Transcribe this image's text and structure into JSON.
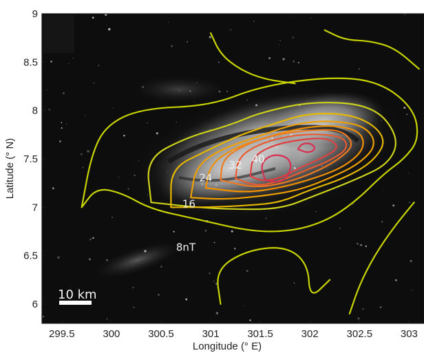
{
  "chart_data": {
    "type": "contour",
    "xlabel": "Longitude  (° E)",
    "ylabel": "Latitude (° N)",
    "xlim": [
      299.3,
      303.15
    ],
    "ylim": [
      5.8,
      9.0
    ],
    "x_ticks": [
      "299.5",
      "300",
      "300.5",
      "301",
      "301.5",
      "302",
      "302.5",
      "303"
    ],
    "y_ticks": [
      "9",
      "8.5",
      "8",
      "7.5",
      "7",
      "6.5",
      "6"
    ],
    "contour_levels": [
      8,
      16,
      24,
      32,
      40
    ],
    "contour_labels": [
      {
        "text": "8nT",
        "x": 300.75,
        "y": 6.55
      },
      {
        "text": "16",
        "x": 300.78,
        "y": 7.0
      },
      {
        "text": "24",
        "x": 300.95,
        "y": 7.27
      },
      {
        "text": "32",
        "x": 301.25,
        "y": 7.4
      },
      {
        "text": "40",
        "x": 301.48,
        "y": 7.46
      }
    ],
    "contours": [
      {
        "level": 8,
        "color": "#c8d400",
        "points": [
          [
            299.7,
            7.0
          ],
          [
            299.8,
            7.55
          ],
          [
            299.95,
            7.85
          ],
          [
            300.3,
            8.02
          ],
          [
            301.0,
            8.05
          ],
          [
            301.5,
            8.25
          ],
          [
            302.2,
            8.35
          ],
          [
            302.7,
            8.3
          ],
          [
            303.05,
            8.02
          ],
          [
            303.1,
            7.7
          ],
          [
            302.95,
            7.5
          ],
          [
            302.75,
            7.35
          ],
          [
            302.45,
            7.05
          ],
          [
            302.15,
            6.85
          ],
          [
            301.8,
            6.75
          ],
          [
            301.4,
            6.75
          ],
          [
            300.85,
            6.88
          ],
          [
            300.4,
            6.98
          ],
          [
            300.1,
            7.15
          ],
          [
            299.85,
            7.2
          ],
          [
            299.7,
            7.0
          ]
        ]
      },
      {
        "level": 8,
        "color": "#c8d400",
        "points": [
          [
            301.0,
            8.8
          ],
          [
            301.1,
            8.58
          ],
          [
            301.3,
            8.42
          ],
          [
            301.55,
            8.32
          ],
          [
            301.85,
            8.28
          ]
        ]
      },
      {
        "level": 8,
        "color": "#c8d400",
        "points": [
          [
            302.15,
            8.83
          ],
          [
            302.35,
            8.73
          ],
          [
            302.6,
            8.72
          ],
          [
            302.85,
            8.65
          ],
          [
            303.1,
            8.43
          ]
        ]
      },
      {
        "level": 8,
        "color": "#c8d400",
        "points": [
          [
            301.1,
            6.0
          ],
          [
            301.05,
            6.35
          ],
          [
            301.35,
            6.55
          ],
          [
            301.75,
            6.6
          ],
          [
            301.98,
            6.42
          ],
          [
            302.0,
            6.05
          ],
          [
            302.2,
            6.25
          ]
        ]
      },
      {
        "level": 8,
        "color": "#c8d400",
        "points": [
          [
            302.4,
            5.9
          ],
          [
            302.5,
            6.2
          ],
          [
            302.65,
            6.5
          ],
          [
            302.85,
            6.8
          ],
          [
            303.05,
            7.05
          ]
        ]
      },
      {
        "level": 12,
        "color": "#cdd21a",
        "points": [
          [
            300.4,
            7.05
          ],
          [
            300.35,
            7.5
          ],
          [
            300.75,
            7.72
          ],
          [
            301.2,
            7.85
          ],
          [
            301.5,
            7.98
          ],
          [
            302.05,
            8.1
          ],
          [
            302.65,
            8.05
          ],
          [
            302.9,
            7.72
          ],
          [
            302.8,
            7.45
          ],
          [
            302.45,
            7.28
          ],
          [
            302.05,
            7.12
          ],
          [
            301.7,
            6.98
          ],
          [
            301.2,
            6.98
          ],
          [
            300.85,
            7.0
          ],
          [
            300.4,
            7.05
          ]
        ]
      },
      {
        "level": 16,
        "color": "#e6b800",
        "points": [
          [
            300.6,
            7.0
          ],
          [
            300.6,
            7.4
          ],
          [
            300.95,
            7.58
          ],
          [
            301.3,
            7.75
          ],
          [
            301.6,
            7.85
          ],
          [
            302.0,
            7.98
          ],
          [
            302.5,
            7.95
          ],
          [
            302.78,
            7.72
          ],
          [
            302.65,
            7.48
          ],
          [
            302.35,
            7.3
          ],
          [
            302.0,
            7.18
          ],
          [
            301.7,
            7.05
          ],
          [
            301.4,
            7.02
          ],
          [
            301.0,
            7.0
          ],
          [
            300.6,
            7.0
          ]
        ]
      },
      {
        "level": 20,
        "color": "#efa000",
        "points": [
          [
            300.8,
            7.1
          ],
          [
            300.85,
            7.42
          ],
          [
            301.1,
            7.6
          ],
          [
            301.45,
            7.72
          ],
          [
            301.8,
            7.85
          ],
          [
            302.15,
            7.9
          ],
          [
            302.55,
            7.85
          ],
          [
            302.68,
            7.65
          ],
          [
            302.5,
            7.45
          ],
          [
            302.2,
            7.3
          ],
          [
            301.9,
            7.18
          ],
          [
            301.55,
            7.12
          ],
          [
            301.15,
            7.08
          ],
          [
            300.8,
            7.1
          ]
        ]
      },
      {
        "level": 24,
        "color": "#f29000",
        "points": [
          [
            300.95,
            7.2
          ],
          [
            301.0,
            7.45
          ],
          [
            301.25,
            7.62
          ],
          [
            301.55,
            7.72
          ],
          [
            301.9,
            7.82
          ],
          [
            302.25,
            7.85
          ],
          [
            302.52,
            7.78
          ],
          [
            302.55,
            7.6
          ],
          [
            302.35,
            7.42
          ],
          [
            302.05,
            7.3
          ],
          [
            301.7,
            7.2
          ],
          [
            301.35,
            7.15
          ],
          [
            300.95,
            7.2
          ]
        ]
      },
      {
        "level": 28,
        "color": "#f07a20",
        "points": [
          [
            301.1,
            7.28
          ],
          [
            301.12,
            7.5
          ],
          [
            301.35,
            7.65
          ],
          [
            301.65,
            7.75
          ],
          [
            302.0,
            7.8
          ],
          [
            302.32,
            7.8
          ],
          [
            302.45,
            7.65
          ],
          [
            302.3,
            7.5
          ],
          [
            302.05,
            7.36
          ],
          [
            301.75,
            7.25
          ],
          [
            301.45,
            7.2
          ],
          [
            301.1,
            7.28
          ]
        ]
      },
      {
        "level": 32,
        "color": "#e85a30",
        "points": [
          [
            301.25,
            7.3
          ],
          [
            301.28,
            7.52
          ],
          [
            301.5,
            7.66
          ],
          [
            301.8,
            7.74
          ],
          [
            302.1,
            7.76
          ],
          [
            302.35,
            7.72
          ],
          [
            302.38,
            7.6
          ],
          [
            302.2,
            7.48
          ],
          [
            301.95,
            7.38
          ],
          [
            301.68,
            7.26
          ],
          [
            301.45,
            7.22
          ],
          [
            301.25,
            7.3
          ]
        ]
      },
      {
        "level": 36,
        "color": "#e04040",
        "points": [
          [
            301.4,
            7.32
          ],
          [
            301.42,
            7.52
          ],
          [
            301.62,
            7.64
          ],
          [
            301.9,
            7.7
          ],
          [
            302.18,
            7.72
          ],
          [
            302.3,
            7.62
          ],
          [
            302.15,
            7.52
          ],
          [
            301.92,
            7.42
          ],
          [
            301.7,
            7.3
          ],
          [
            301.52,
            7.27
          ],
          [
            301.4,
            7.32
          ]
        ]
      },
      {
        "level": 40,
        "color": "#d83050",
        "points": [
          [
            301.55,
            7.28
          ],
          [
            301.5,
            7.45
          ],
          [
            301.62,
            7.55
          ],
          [
            301.78,
            7.52
          ],
          [
            301.82,
            7.4
          ],
          [
            301.72,
            7.25
          ],
          [
            301.55,
            7.28
          ]
        ]
      },
      {
        "level": 44,
        "color": "#d83050",
        "points": [
          [
            301.88,
            7.6
          ],
          [
            301.92,
            7.66
          ],
          [
            302.02,
            7.66
          ],
          [
            302.06,
            7.6
          ],
          [
            301.98,
            7.56
          ],
          [
            301.88,
            7.6
          ]
        ]
      }
    ],
    "grid": false,
    "background": "grayscale lunar surface image"
  },
  "scale_bar": {
    "label": "10 km"
  }
}
